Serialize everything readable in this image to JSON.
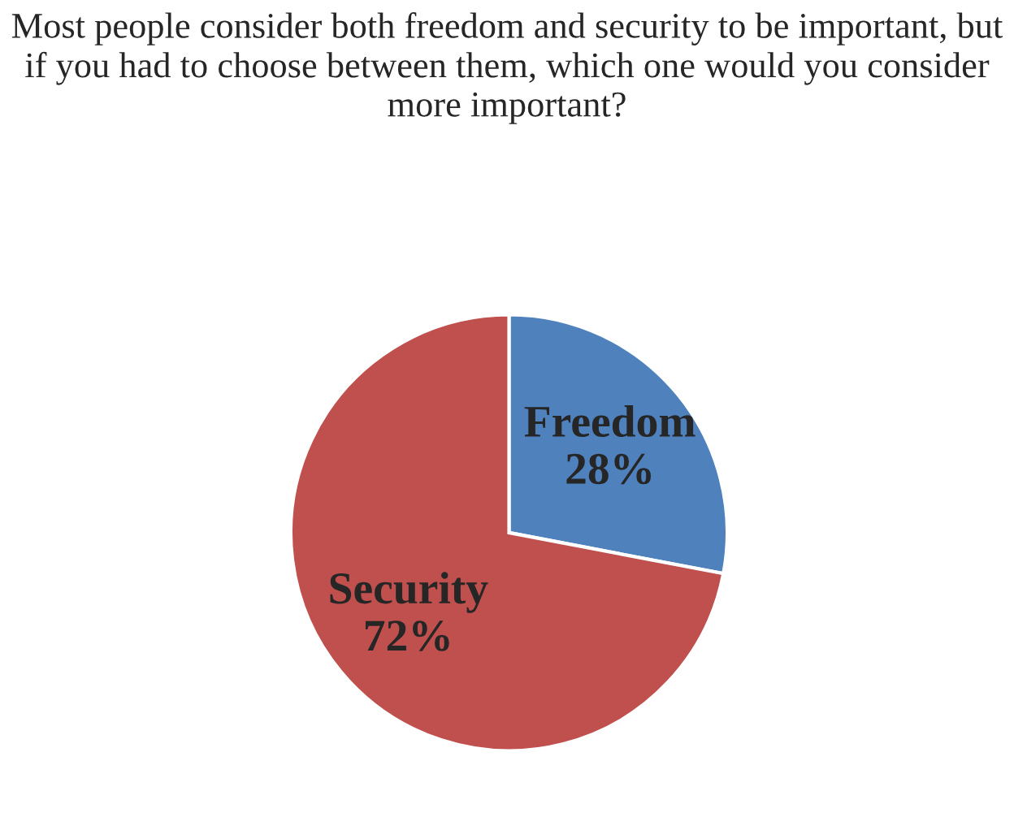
{
  "chart_data": {
    "type": "pie",
    "title": "Most people consider both freedom and security to be important, but if you had to choose between them, which one would you consider more important?",
    "categories": [
      "Freedom",
      "Security"
    ],
    "values": [
      28,
      72
    ],
    "colors": [
      "#4f81bd",
      "#c0504d"
    ],
    "value_labels": [
      "28%",
      "72%"
    ],
    "legend": false
  }
}
